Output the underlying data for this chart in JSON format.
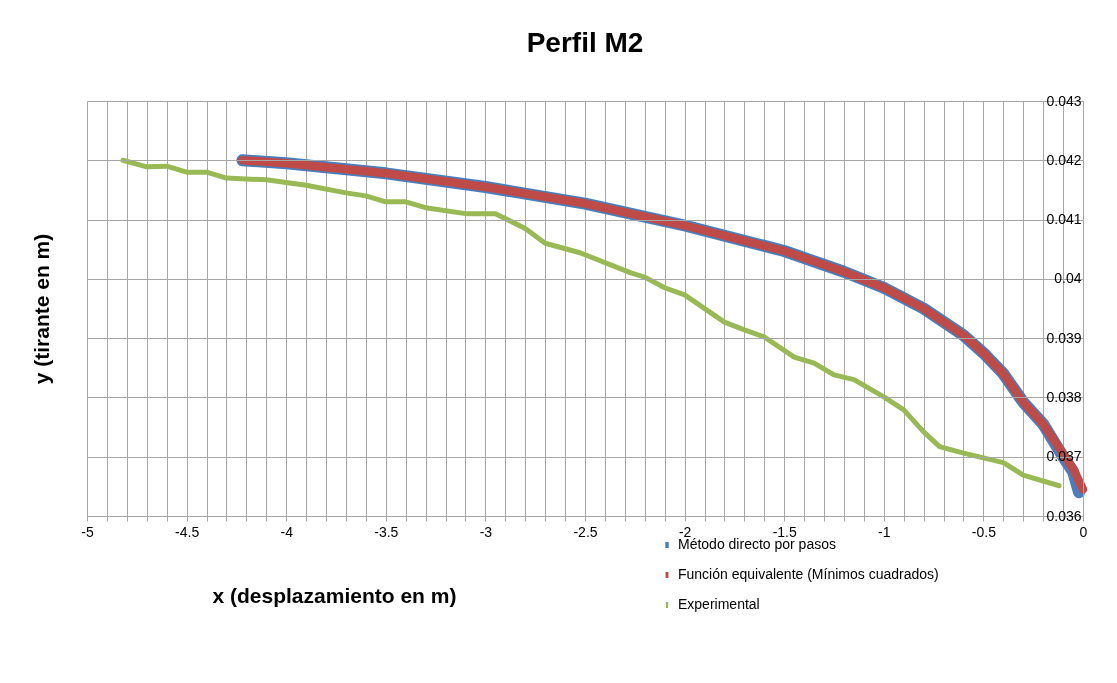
{
  "chart_data": {
    "type": "line",
    "title": "Perfil M2",
    "xlabel": "x (desplazamiento en m)",
    "ylabel": "y (tirante en m)",
    "xlim": [
      -5,
      0
    ],
    "ylim": [
      0.036,
      0.043
    ],
    "xticks": [
      -5,
      {
        "value": -4.9,
        "label": null
      },
      {
        "value": -4.8,
        "label": null
      },
      {
        "value": -4.7,
        "label": null
      },
      {
        "value": -4.6,
        "label": null
      },
      -4.5,
      {
        "value": -4.4,
        "label": null
      },
      {
        "value": -4.3,
        "label": null
      },
      {
        "value": -4.2,
        "label": null
      },
      {
        "value": -4.1,
        "label": null
      },
      -4,
      {
        "value": -3.9,
        "label": null
      },
      {
        "value": -3.8,
        "label": null
      },
      {
        "value": -3.7,
        "label": null
      },
      {
        "value": -3.6,
        "label": null
      },
      -3.5,
      {
        "value": -3.4,
        "label": null
      },
      {
        "value": -3.3,
        "label": null
      },
      {
        "value": -3.2,
        "label": null
      },
      {
        "value": -3.1,
        "label": null
      },
      -3,
      {
        "value": -2.9,
        "label": null
      },
      {
        "value": -2.8,
        "label": null
      },
      {
        "value": -2.7,
        "label": null
      },
      {
        "value": -2.6,
        "label": null
      },
      -2.5,
      {
        "value": -2.4,
        "label": null
      },
      {
        "value": -2.3,
        "label": null
      },
      {
        "value": -2.2,
        "label": null
      },
      {
        "value": -2.1,
        "label": null
      },
      -2,
      {
        "value": -1.9,
        "label": null
      },
      {
        "value": -1.8,
        "label": null
      },
      {
        "value": -1.7,
        "label": null
      },
      {
        "value": -1.6,
        "label": null
      },
      -1.5,
      {
        "value": -1.4,
        "label": null
      },
      {
        "value": -1.3,
        "label": null
      },
      {
        "value": -1.2,
        "label": null
      },
      {
        "value": -1.1,
        "label": null
      },
      -1,
      {
        "value": -0.9,
        "label": null
      },
      {
        "value": -0.8,
        "label": null
      },
      {
        "value": -0.7,
        "label": null
      },
      {
        "value": -0.6,
        "label": null
      },
      -0.5,
      {
        "value": -0.4,
        "label": null
      },
      {
        "value": -0.3,
        "label": null
      },
      {
        "value": -0.2,
        "label": null
      },
      {
        "value": -0.1,
        "label": null
      },
      0
    ],
    "yticks": [
      0.036,
      0.037,
      0.038,
      0.039,
      0.04,
      0.041,
      0.042,
      0.043
    ],
    "grid": true,
    "legend": "bottom",
    "marker": "none",
    "line_style": "solid",
    "series": [
      {
        "name": "Método directo por pasos",
        "color": "#4a7ebb",
        "x": [
          -4.22,
          -4,
          -3.5,
          -3,
          -2.5,
          -2,
          -1.5,
          -1.2,
          -1,
          -0.8,
          -0.6,
          -0.5,
          -0.4,
          -0.3,
          -0.2,
          -0.1,
          -0.05,
          -0.02
        ],
        "values": [
          0.042,
          0.04195,
          0.04178,
          0.04155,
          0.04127,
          0.0409,
          0.04047,
          0.04012,
          0.03985,
          0.0395,
          0.03905,
          0.03875,
          0.0384,
          0.03792,
          0.03755,
          0.037,
          0.03675,
          0.0364
        ]
      },
      {
        "name": "Función equivalente (Mínimos cuadrados)",
        "color": "#be4b48",
        "x": [
          -4.22,
          -4,
          -3.5,
          -3,
          -2.5,
          -2,
          -1.5,
          -1.2,
          -1,
          -0.8,
          -0.6,
          -0.5,
          -0.4,
          -0.3,
          -0.2,
          -0.1,
          -0.05,
          0
        ],
        "values": [
          0.042,
          0.04195,
          0.04178,
          0.04155,
          0.04127,
          0.0409,
          0.04047,
          0.04012,
          0.03985,
          0.0395,
          0.03905,
          0.03875,
          0.0384,
          0.03792,
          0.03755,
          0.03705,
          0.0368,
          0.03645
        ]
      },
      {
        "name": "Experimental",
        "color": "#98b954",
        "x": [
          -4.82,
          -4.7,
          -4.6,
          -4.5,
          -4.4,
          -4.3,
          -4.1,
          -3.9,
          -3.7,
          -3.6,
          -3.5,
          -3.4,
          -3.3,
          -3.1,
          -2.95,
          -2.8,
          -2.7,
          -2.525,
          -2.27,
          -2.2,
          -2.1,
          -2,
          -1.8,
          -1.7,
          -1.6,
          -1.45,
          -1.35,
          -1.25,
          -1.15,
          -1,
          -0.9,
          -0.8,
          -0.72,
          -0.6,
          -0.4,
          -0.3,
          -0.12
        ],
        "values": [
          0.042,
          0.04189,
          0.0419,
          0.0418,
          0.0418,
          0.0417,
          0.04167,
          0.04158,
          0.04145,
          0.0414,
          0.0413,
          0.0413,
          0.0412,
          0.0411,
          0.0411,
          0.04085,
          0.0406,
          0.04044,
          0.0401,
          0.04003,
          0.03985,
          0.03973,
          0.03927,
          0.03914,
          0.03902,
          0.03868,
          0.03858,
          0.03838,
          0.0383,
          0.03801,
          0.03779,
          0.03742,
          0.03717,
          0.03706,
          0.0369,
          0.03669,
          0.03651
        ]
      }
    ]
  }
}
